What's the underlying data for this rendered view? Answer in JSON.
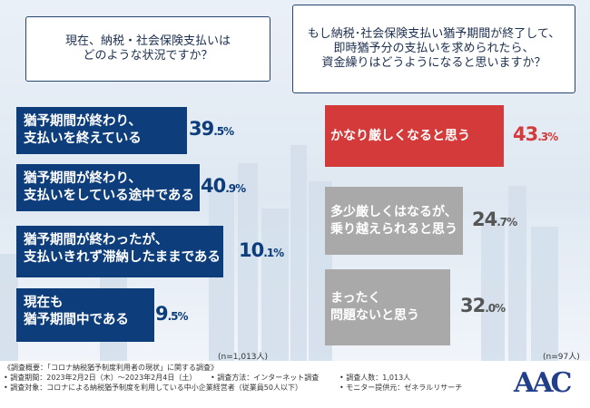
{
  "colors": {
    "left_bar": "#0d3d7a",
    "highlight_bar": "#d43a3a",
    "grey_bar": "#a9a9a9",
    "pct_blue": "#0d3d7a",
    "pct_red": "#d43a3a",
    "pct_grey": "#555555"
  },
  "questions": {
    "left": "現在、納税・社会保険支払いは\nどのような状況ですか？",
    "right": "もし納税･社会保険支払い猶予期間が終了して、\n即時猶予分の支払いを求められたら、\n資金繰りはどうようになると思いますか？"
  },
  "chart_data": [
    {
      "type": "bar",
      "orientation": "horizontal",
      "title": "現在、納税・社会保険支払いは\nどのような状況ですか？",
      "categories": [
        "猶予期間が終わり、\n支払いを終えている",
        "猶予期間が終わり、\n支払いをしている途中である",
        "猶予期間が終わったが、\n支払いきれず滞納したままである",
        "現在も\n猶予期間中である"
      ],
      "values": [
        39.5,
        40.9,
        10.1,
        9.5
      ],
      "unit": "%",
      "note": "(n=1,013人)"
    },
    {
      "type": "bar",
      "orientation": "horizontal",
      "title": "もし納税･社会保険支払い猶予期間が終了して、\n即時猶予分の支払いを求められたら、\n資金繰りはどうようになると思いますか？",
      "categories": [
        "かなり厳しくなると思う",
        "多少厳しくはなるが、\n乗り越えられると思う",
        "まったく\n問題ないと思う"
      ],
      "values": [
        43.3,
        24.7,
        32.0
      ],
      "unit": "%",
      "note": "(n=97人)"
    }
  ],
  "footer": {
    "overview": "《調査概要：「コロナ納税猶予制度利用者の現状」に関する調査》",
    "period": "• 調査期間：2023年2月2日（木）～2023年2月4日（土）",
    "method": "• 調査方法：インターネット調査",
    "respondents": "• 調査人数：1,013人",
    "target": "• 調査対象：コロナによる納税猶予制度を利用している中小企業経営者（従業員50人以下）",
    "provider": "• モニター提供元：ゼネラルリサーチ"
  },
  "logo": "AAC"
}
